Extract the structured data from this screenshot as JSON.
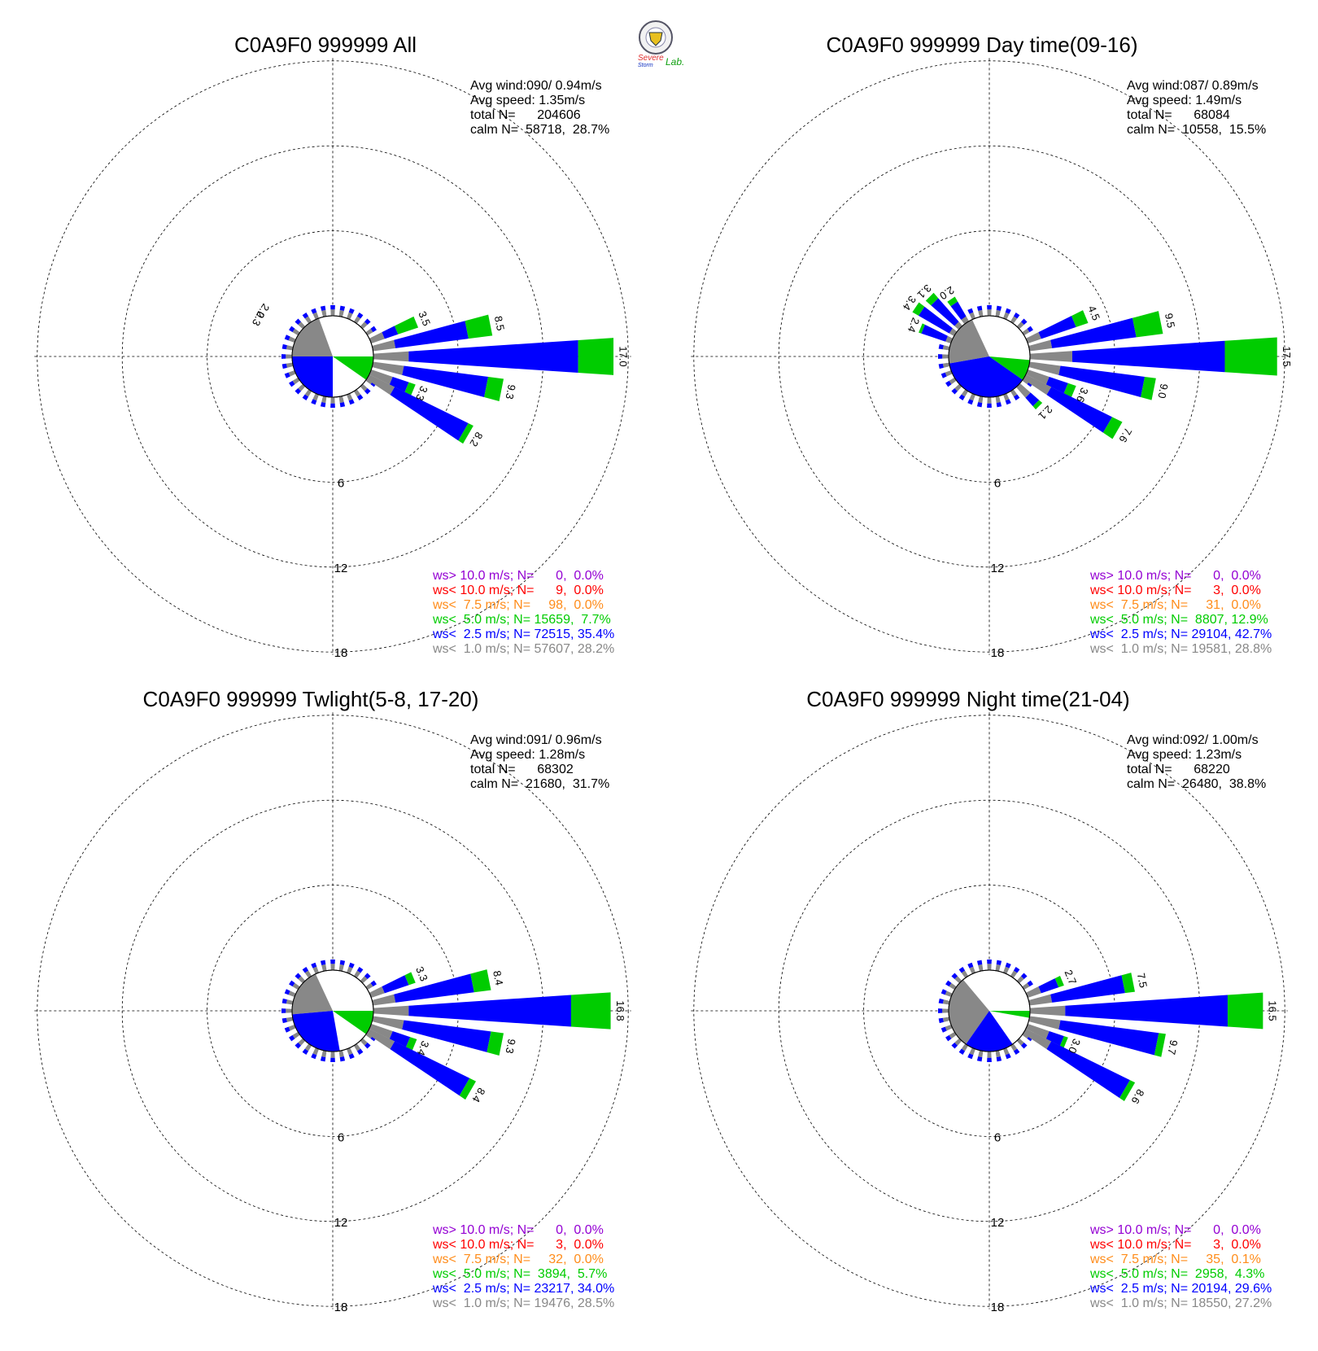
{
  "logo": {
    "text_line1": "Severe",
    "text_line2": "Storm",
    "text_line3": "Lab."
  },
  "colors": {
    "ws_gt_10": "#9400d3",
    "ws_lt_10": "#ff0000",
    "ws_lt_7_5": "#ff8c1a",
    "ws_lt_5": "#00cc00",
    "ws_lt_2_5": "#0000ff",
    "ws_lt_1": "#888888",
    "grid": "#000000"
  },
  "chart_data": [
    {
      "type": "wind-rose",
      "title": "C0A9F0 999999 All",
      "ring_labels": [
        "6",
        "12",
        "18"
      ],
      "stats": [
        "Avg wind:090/ 0.94m/s",
        "Avg speed: 1.35m/s",
        "total N=      204606",
        "calm N=  58718,  28.7%"
      ],
      "legend": [
        {
          "text": "ws> 10.0 m/s; N=      0,  0.0%",
          "color_key": "ws_gt_10"
        },
        {
          "text": "ws< 10.0 m/s; N=      9,  0.0%",
          "color_key": "ws_lt_10"
        },
        {
          "text": "ws<  7.5 m/s; N=     98,  0.0%",
          "color_key": "ws_lt_7_5"
        },
        {
          "text": "ws<  5.0 m/s; N= 15659,  7.7%",
          "color_key": "ws_lt_5"
        },
        {
          "text": "ws<  2.5 m/s; N= 72515, 35.4%",
          "color_key": "ws_lt_2_5"
        },
        {
          "text": "ws<  1.0 m/s; N= 57607, 28.2%",
          "color_key": "ws_lt_1"
        }
      ],
      "calm_pie": [
        {
          "color_key": "ws_lt_1",
          "from_deg": 270,
          "to_deg": 340
        },
        {
          "color_key": "ws_lt_2_5",
          "from_deg": 180,
          "to_deg": 270
        },
        {
          "color_key": "ws_lt_5",
          "from_deg": 90,
          "to_deg": 125
        }
      ],
      "petals": [
        {
          "dir": 67.5,
          "values": [
            1.0,
            2.0,
            3.5
          ]
        },
        {
          "dir": 78.75,
          "values": [
            1.6,
            6.8,
            8.5
          ]
        },
        {
          "dir": 90,
          "values": [
            2.5,
            14.5,
            17.0
          ]
        },
        {
          "dir": 101.25,
          "values": [
            2.2,
            8.2,
            9.3
          ]
        },
        {
          "dir": 112.5,
          "values": [
            1.6,
            2.8,
            3.3
          ]
        },
        {
          "dir": 120,
          "values": [
            2.0,
            7.8,
            8.2
          ]
        }
      ],
      "petal_labels": [
        {
          "dir": 67.5,
          "text": "3.5"
        },
        {
          "dir": 78.75,
          "text": "8.5"
        },
        {
          "dir": 90,
          "text": "17.0"
        },
        {
          "dir": 101.25,
          "text": "9.3"
        },
        {
          "dir": 112.5,
          "text": "3.3"
        },
        {
          "dir": 120,
          "text": "8.2"
        },
        {
          "dir": 297,
          "text": "2.3"
        },
        {
          "dir": 303,
          "text": "2.0"
        }
      ]
    },
    {
      "type": "wind-rose",
      "title": "C0A9F0 999999 Day time(09-16)",
      "ring_labels": [
        "6",
        "12",
        "18"
      ],
      "stats": [
        "Avg wind:087/ 0.89m/s",
        "Avg speed: 1.49m/s",
        "total N=      68084",
        "calm N=  10558,  15.5%"
      ],
      "legend": [
        {
          "text": "ws> 10.0 m/s; N=      0,  0.0%",
          "color_key": "ws_gt_10"
        },
        {
          "text": "ws< 10.0 m/s; N=      3,  0.0%",
          "color_key": "ws_lt_10"
        },
        {
          "text": "ws<  7.5 m/s; N=     31,  0.0%",
          "color_key": "ws_lt_7_5"
        },
        {
          "text": "ws<  5.0 m/s; N=  8807, 12.9%",
          "color_key": "ws_lt_5"
        },
        {
          "text": "ws<  2.5 m/s; N= 29104, 42.7%",
          "color_key": "ws_lt_2_5"
        },
        {
          "text": "ws<  1.0 m/s; N= 19581, 28.8%",
          "color_key": "ws_lt_1"
        }
      ],
      "calm_pie": [
        {
          "color_key": "ws_lt_1",
          "from_deg": 260,
          "to_deg": 335
        },
        {
          "color_key": "ws_lt_2_5",
          "from_deg": 125,
          "to_deg": 260
        },
        {
          "color_key": "ws_lt_5",
          "from_deg": 95,
          "to_deg": 125
        }
      ],
      "petals": [
        {
          "dir": 67.5,
          "values": [
            1.0,
            3.6,
            4.5
          ]
        },
        {
          "dir": 78.75,
          "values": [
            1.6,
            7.6,
            9.5
          ]
        },
        {
          "dir": 90,
          "values": [
            3.0,
            13.8,
            17.5
          ]
        },
        {
          "dir": 101.25,
          "values": [
            2.2,
            8.2,
            9.0
          ]
        },
        {
          "dir": 112.5,
          "values": [
            1.6,
            3.0,
            3.6
          ]
        },
        {
          "dir": 120,
          "values": [
            2.0,
            6.8,
            7.6
          ]
        },
        {
          "dir": 135,
          "values": [
            1.0,
            1.8,
            2.1
          ]
        },
        {
          "dir": 292.5,
          "values": [
            0.4,
            2.2,
            2.4
          ]
        },
        {
          "dir": 303.75,
          "values": [
            0.4,
            2.9,
            3.4
          ]
        },
        {
          "dir": 315,
          "values": [
            0.4,
            2.6,
            3.1
          ]
        },
        {
          "dir": 326.25,
          "values": [
            0.4,
            1.6,
            2.0
          ]
        }
      ],
      "petal_labels": [
        {
          "dir": 67.5,
          "text": "4.5"
        },
        {
          "dir": 78.75,
          "text": "9.5"
        },
        {
          "dir": 90,
          "text": "17.5"
        },
        {
          "dir": 101.25,
          "text": "9.0"
        },
        {
          "dir": 112.5,
          "text": "3.6"
        },
        {
          "dir": 120,
          "text": "7.6"
        },
        {
          "dir": 135,
          "text": "2.1"
        },
        {
          "dir": 292.5,
          "text": "2.4"
        },
        {
          "dir": 303.75,
          "text": "3.4"
        },
        {
          "dir": 315,
          "text": "3.1"
        },
        {
          "dir": 326.25,
          "text": "2.0"
        }
      ]
    },
    {
      "type": "wind-rose",
      "title": "C0A9F0 999999 Twlight(5-8, 17-20)",
      "ring_labels": [
        "6",
        "12",
        "18"
      ],
      "stats": [
        "Avg wind:091/ 0.96m/s",
        "Avg speed: 1.28m/s",
        "total N=      68302",
        "calm N=  21680,  31.7%"
      ],
      "legend": [
        {
          "text": "ws> 10.0 m/s; N=      0,  0.0%",
          "color_key": "ws_gt_10"
        },
        {
          "text": "ws< 10.0 m/s; N=      3,  0.0%",
          "color_key": "ws_lt_10"
        },
        {
          "text": "ws<  7.5 m/s; N=     32,  0.0%",
          "color_key": "ws_lt_7_5"
        },
        {
          "text": "ws<  5.0 m/s; N=  3894,  5.7%",
          "color_key": "ws_lt_5"
        },
        {
          "text": "ws<  2.5 m/s; N= 23217, 34.0%",
          "color_key": "ws_lt_2_5"
        },
        {
          "text": "ws<  1.0 m/s; N= 19476, 28.5%",
          "color_key": "ws_lt_1"
        }
      ],
      "calm_pie": [
        {
          "color_key": "ws_lt_1",
          "from_deg": 265,
          "to_deg": 335
        },
        {
          "color_key": "ws_lt_2_5",
          "from_deg": 170,
          "to_deg": 265
        },
        {
          "color_key": "ws_lt_5",
          "from_deg": 90,
          "to_deg": 125
        }
      ],
      "petals": [
        {
          "dir": 67.5,
          "values": [
            1.0,
            2.8,
            3.3
          ]
        },
        {
          "dir": 78.75,
          "values": [
            1.6,
            7.2,
            8.4
          ]
        },
        {
          "dir": 90,
          "values": [
            2.5,
            14.0,
            16.8
          ]
        },
        {
          "dir": 101.25,
          "values": [
            2.2,
            8.4,
            9.3
          ]
        },
        {
          "dir": 112.5,
          "values": [
            1.6,
            2.9,
            3.4
          ]
        },
        {
          "dir": 120,
          "values": [
            2.0,
            7.9,
            8.4
          ]
        }
      ],
      "petal_labels": [
        {
          "dir": 67.5,
          "text": "3.3"
        },
        {
          "dir": 78.75,
          "text": "8.4"
        },
        {
          "dir": 90,
          "text": "16.8"
        },
        {
          "dir": 101.25,
          "text": "9.3"
        },
        {
          "dir": 112.5,
          "text": "3.4"
        },
        {
          "dir": 120,
          "text": "8.4"
        }
      ]
    },
    {
      "type": "wind-rose",
      "title": "C0A9F0 999999 Night time(21-04)",
      "ring_labels": [
        "6",
        "12",
        "18"
      ],
      "stats": [
        "Avg wind:092/ 1.00m/s",
        "Avg speed: 1.23m/s",
        "total N=      68220",
        "calm N=  26480,  38.8%"
      ],
      "legend": [
        {
          "text": "ws> 10.0 m/s; N=      0,  0.0%",
          "color_key": "ws_gt_10"
        },
        {
          "text": "ws< 10.0 m/s; N=      3,  0.0%",
          "color_key": "ws_lt_10"
        },
        {
          "text": "ws<  7.5 m/s; N=     35,  0.1%",
          "color_key": "ws_lt_7_5"
        },
        {
          "text": "ws<  5.0 m/s; N=  2958,  4.3%",
          "color_key": "ws_lt_5"
        },
        {
          "text": "ws<  2.5 m/s; N= 20194, 29.6%",
          "color_key": "ws_lt_2_5"
        },
        {
          "text": "ws<  1.0 m/s; N= 18550, 27.2%",
          "color_key": "ws_lt_1"
        }
      ],
      "calm_pie": [
        {
          "color_key": "ws_lt_1",
          "from_deg": 215,
          "to_deg": 320
        },
        {
          "color_key": "ws_lt_2_5",
          "from_deg": 145,
          "to_deg": 215
        },
        {
          "color_key": "ws_lt_5",
          "from_deg": 90,
          "to_deg": 100
        }
      ],
      "petals": [
        {
          "dir": 67.5,
          "values": [
            1.0,
            2.3,
            2.7
          ]
        },
        {
          "dir": 78.75,
          "values": [
            1.6,
            6.8,
            7.5
          ]
        },
        {
          "dir": 90,
          "values": [
            2.5,
            14.0,
            16.5
          ]
        },
        {
          "dir": 101.25,
          "values": [
            2.2,
            9.2,
            9.7
          ]
        },
        {
          "dir": 112.5,
          "values": [
            1.6,
            2.7,
            3.0
          ]
        },
        {
          "dir": 120,
          "values": [
            2.0,
            8.2,
            8.6
          ]
        }
      ],
      "petal_labels": [
        {
          "dir": 67.5,
          "text": "2.7"
        },
        {
          "dir": 78.75,
          "text": "7.5"
        },
        {
          "dir": 90,
          "text": "16.5"
        },
        {
          "dir": 101.25,
          "text": "9.7"
        },
        {
          "dir": 112.5,
          "text": "3.0"
        },
        {
          "dir": 120,
          "text": "8.6"
        }
      ]
    }
  ]
}
